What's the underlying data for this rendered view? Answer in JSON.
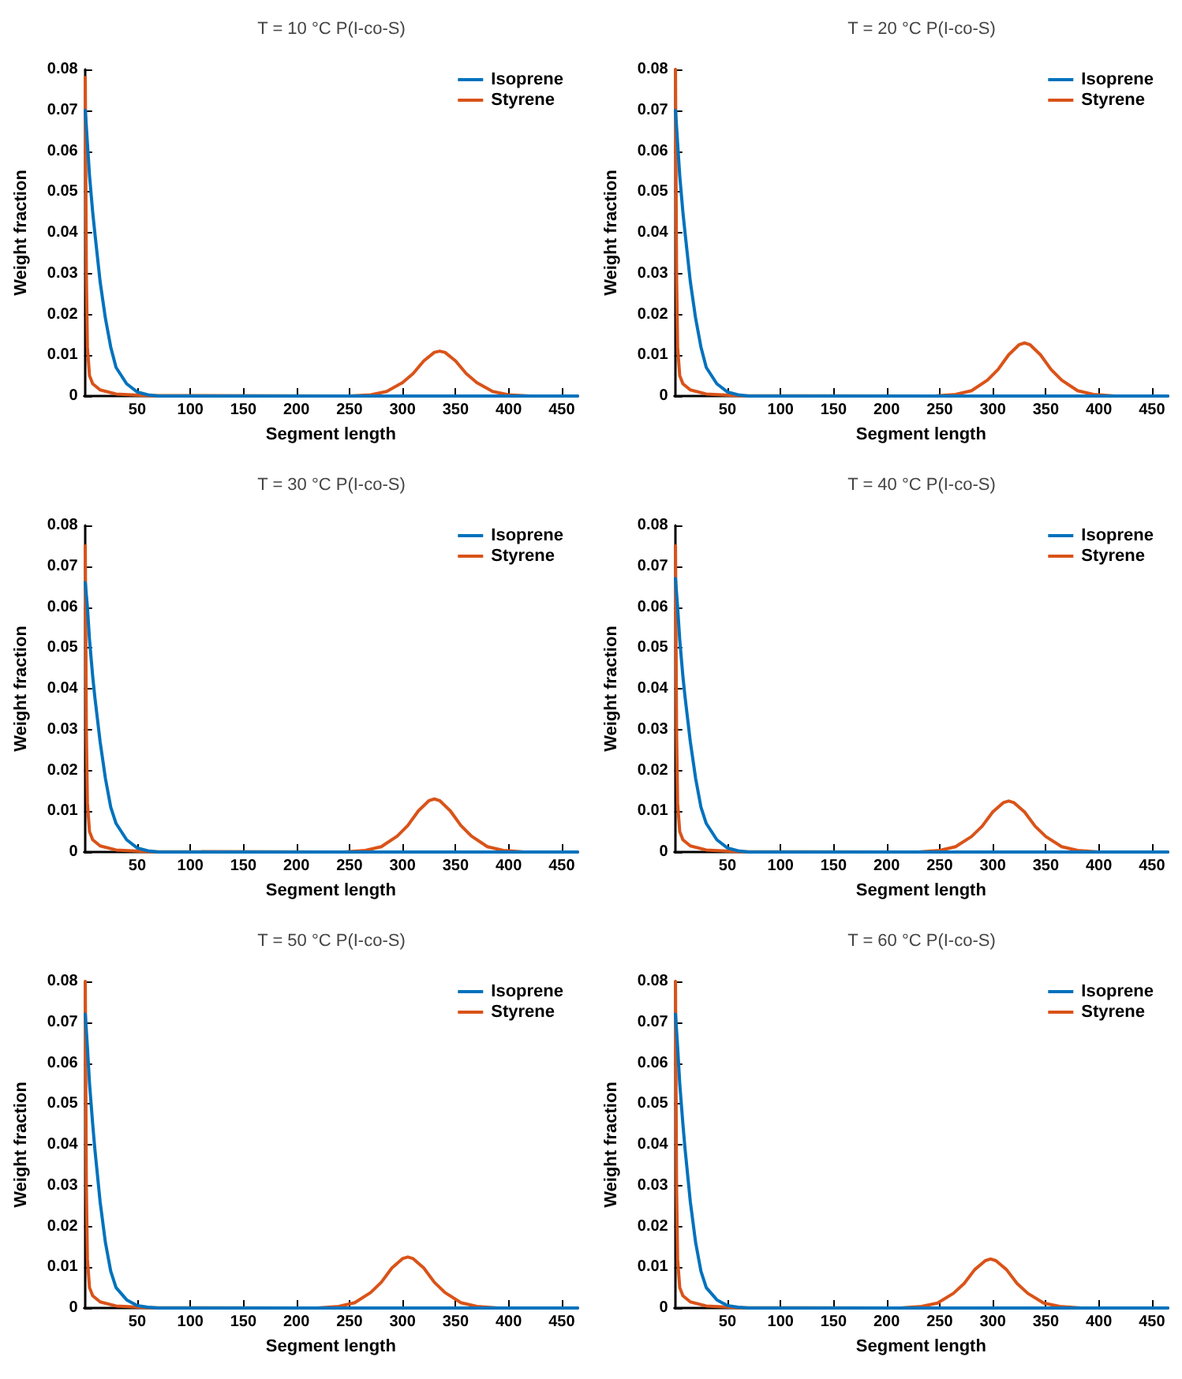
{
  "chart_data": [
    {
      "type": "line",
      "title": "T = 10 °C P(I-co-S)",
      "xlabel": "Segment length",
      "ylabel": "Weight fraction",
      "xlim": [
        0,
        465
      ],
      "xticks": [
        50,
        100,
        150,
        200,
        250,
        300,
        350,
        400,
        450
      ],
      "ylim": [
        0,
        0.08
      ],
      "yticks": [
        0,
        0.01,
        0.02,
        0.03,
        0.04,
        0.05,
        0.06,
        0.07,
        0.08
      ],
      "grid": false,
      "legend": "top right",
      "marker": "none",
      "line_style": "solid",
      "series": [
        {
          "name": "Isoprene",
          "color": "#0072bd",
          "x": [
            1,
            3,
            5,
            8,
            10,
            15,
            20,
            25,
            30,
            40,
            50,
            60,
            70,
            465
          ],
          "values": [
            0.07,
            0.062,
            0.054,
            0.045,
            0.04,
            0.028,
            0.019,
            0.012,
            0.007,
            0.003,
            0.001,
            0.0003,
            0,
            0
          ]
        },
        {
          "name": "Styrene",
          "color": "#d95319",
          "x": [
            1,
            2,
            3,
            5,
            8,
            15,
            30,
            60,
            250,
            270,
            285,
            300,
            310,
            320,
            330,
            335,
            340,
            350,
            360,
            370,
            385,
            400,
            420,
            465
          ],
          "values": [
            0.078,
            0.03,
            0.012,
            0.005,
            0.003,
            0.0015,
            0.0005,
            0.0001,
            0,
            0.0003,
            0.0011,
            0.0033,
            0.0055,
            0.0086,
            0.0107,
            0.011,
            0.0107,
            0.0086,
            0.0055,
            0.0033,
            0.0011,
            0.0003,
            0,
            0
          ]
        }
      ]
    },
    {
      "type": "line",
      "title": "T = 20 °C P(I-co-S)",
      "xlabel": "Segment length",
      "ylabel": "Weight fraction",
      "xlim": [
        0,
        465
      ],
      "xticks": [
        50,
        100,
        150,
        200,
        250,
        300,
        350,
        400,
        450
      ],
      "ylim": [
        0,
        0.08
      ],
      "yticks": [
        0,
        0.01,
        0.02,
        0.03,
        0.04,
        0.05,
        0.06,
        0.07,
        0.08
      ],
      "grid": false,
      "legend": "top right",
      "marker": "none",
      "line_style": "solid",
      "series": [
        {
          "name": "Isoprene",
          "color": "#0072bd",
          "x": [
            1,
            3,
            5,
            8,
            10,
            15,
            20,
            25,
            30,
            40,
            50,
            60,
            70,
            465
          ],
          "values": [
            0.07,
            0.062,
            0.054,
            0.045,
            0.04,
            0.028,
            0.019,
            0.012,
            0.007,
            0.003,
            0.001,
            0.0003,
            0,
            0
          ]
        },
        {
          "name": "Styrene",
          "color": "#d95319",
          "x": [
            1,
            2,
            3,
            5,
            8,
            15,
            30,
            60,
            245,
            265,
            280,
            295,
            305,
            315,
            325,
            330,
            335,
            345,
            355,
            365,
            380,
            395,
            415,
            465
          ],
          "values": [
            0.08,
            0.03,
            0.012,
            0.005,
            0.003,
            0.0015,
            0.0005,
            0.0001,
            0,
            0.0004,
            0.0013,
            0.0039,
            0.0065,
            0.0101,
            0.0126,
            0.013,
            0.0126,
            0.0101,
            0.0065,
            0.0039,
            0.0013,
            0.0004,
            0,
            0
          ]
        }
      ]
    },
    {
      "type": "line",
      "title": "T = 30 °C P(I-co-S)",
      "xlabel": "Segment length",
      "ylabel": "Weight fraction",
      "xlim": [
        0,
        465
      ],
      "xticks": [
        50,
        100,
        150,
        200,
        250,
        300,
        350,
        400,
        450
      ],
      "ylim": [
        0,
        0.08
      ],
      "yticks": [
        0,
        0.01,
        0.02,
        0.03,
        0.04,
        0.05,
        0.06,
        0.07,
        0.08
      ],
      "grid": false,
      "legend": "top right",
      "marker": "none",
      "line_style": "solid",
      "series": [
        {
          "name": "Isoprene",
          "color": "#0072bd",
          "x": [
            1,
            3,
            5,
            8,
            10,
            15,
            20,
            25,
            30,
            40,
            50,
            60,
            70,
            465
          ],
          "values": [
            0.066,
            0.06,
            0.052,
            0.043,
            0.038,
            0.027,
            0.018,
            0.011,
            0.007,
            0.003,
            0.001,
            0.0003,
            0,
            0
          ]
        },
        {
          "name": "Styrene",
          "color": "#d95319",
          "x": [
            1,
            2,
            3,
            5,
            8,
            15,
            30,
            60,
            245,
            265,
            280,
            295,
            305,
            315,
            325,
            330,
            335,
            345,
            355,
            365,
            380,
            395,
            415,
            465
          ],
          "values": [
            0.075,
            0.03,
            0.012,
            0.005,
            0.003,
            0.0015,
            0.0005,
            0.0001,
            0,
            0.0004,
            0.0013,
            0.0039,
            0.0065,
            0.0101,
            0.0126,
            0.013,
            0.0126,
            0.0101,
            0.0065,
            0.0039,
            0.0013,
            0.0004,
            0,
            0
          ]
        }
      ]
    },
    {
      "type": "line",
      "title": "T = 40 °C P(I-co-S)",
      "xlabel": "Segment length",
      "ylabel": "Weight fraction",
      "xlim": [
        0,
        465
      ],
      "xticks": [
        50,
        100,
        150,
        200,
        250,
        300,
        350,
        400,
        450
      ],
      "ylim": [
        0,
        0.08
      ],
      "yticks": [
        0,
        0.01,
        0.02,
        0.03,
        0.04,
        0.05,
        0.06,
        0.07,
        0.08
      ],
      "grid": false,
      "legend": "top right",
      "marker": "none",
      "line_style": "solid",
      "series": [
        {
          "name": "Isoprene",
          "color": "#0072bd",
          "x": [
            1,
            3,
            5,
            8,
            10,
            15,
            20,
            25,
            30,
            40,
            50,
            60,
            70,
            465
          ],
          "values": [
            0.067,
            0.06,
            0.052,
            0.043,
            0.038,
            0.027,
            0.018,
            0.011,
            0.007,
            0.003,
            0.001,
            0.0003,
            0,
            0
          ]
        },
        {
          "name": "Styrene",
          "color": "#d95319",
          "x": [
            1,
            2,
            3,
            5,
            8,
            15,
            30,
            60,
            230,
            250,
            265,
            280,
            290,
            300,
            310,
            315,
            320,
            330,
            340,
            350,
            365,
            380,
            400,
            465
          ],
          "values": [
            0.075,
            0.03,
            0.012,
            0.005,
            0.003,
            0.0015,
            0.0005,
            0.0001,
            0,
            0.0004,
            0.0013,
            0.0038,
            0.0063,
            0.0098,
            0.0121,
            0.0125,
            0.0121,
            0.0098,
            0.0063,
            0.0038,
            0.0013,
            0.0004,
            0,
            0
          ]
        }
      ]
    },
    {
      "type": "line",
      "title": "T = 50 °C P(I-co-S)",
      "xlabel": "Segment length",
      "ylabel": "Weight fraction",
      "xlim": [
        0,
        465
      ],
      "xticks": [
        50,
        100,
        150,
        200,
        250,
        300,
        350,
        400,
        450
      ],
      "ylim": [
        0,
        0.08
      ],
      "yticks": [
        0,
        0.01,
        0.02,
        0.03,
        0.04,
        0.05,
        0.06,
        0.07,
        0.08
      ],
      "grid": false,
      "legend": "top right",
      "marker": "none",
      "line_style": "solid",
      "series": [
        {
          "name": "Isoprene",
          "color": "#0072bd",
          "x": [
            1,
            3,
            5,
            8,
            10,
            15,
            20,
            25,
            30,
            40,
            50,
            60,
            70,
            465
          ],
          "values": [
            0.072,
            0.064,
            0.055,
            0.045,
            0.039,
            0.026,
            0.016,
            0.009,
            0.005,
            0.002,
            0.0006,
            0.0002,
            0,
            0
          ]
        },
        {
          "name": "Styrene",
          "color": "#d95319",
          "x": [
            1,
            2,
            3,
            5,
            8,
            15,
            30,
            60,
            220,
            240,
            255,
            270,
            280,
            290,
            300,
            305,
            310,
            320,
            330,
            340,
            355,
            370,
            390,
            465
          ],
          "values": [
            0.08,
            0.03,
            0.012,
            0.005,
            0.003,
            0.0015,
            0.0005,
            0.0001,
            0,
            0.0004,
            0.0013,
            0.0038,
            0.0063,
            0.0098,
            0.0121,
            0.0125,
            0.0121,
            0.0098,
            0.0063,
            0.0038,
            0.0013,
            0.0004,
            0,
            0
          ]
        }
      ]
    },
    {
      "type": "line",
      "title": "T = 60 °C P(I-co-S)",
      "xlabel": "Segment length",
      "ylabel": "Weight fraction",
      "xlim": [
        0,
        465
      ],
      "xticks": [
        50,
        100,
        150,
        200,
        250,
        300,
        350,
        400,
        450
      ],
      "ylim": [
        0,
        0.08
      ],
      "yticks": [
        0,
        0.01,
        0.02,
        0.03,
        0.04,
        0.05,
        0.06,
        0.07,
        0.08
      ],
      "grid": false,
      "legend": "top right",
      "marker": "none",
      "line_style": "solid",
      "series": [
        {
          "name": "Isoprene",
          "color": "#0072bd",
          "x": [
            1,
            3,
            5,
            8,
            10,
            15,
            20,
            25,
            30,
            40,
            50,
            60,
            70,
            465
          ],
          "values": [
            0.072,
            0.064,
            0.055,
            0.045,
            0.039,
            0.026,
            0.016,
            0.009,
            0.005,
            0.002,
            0.0006,
            0.0002,
            0,
            0
          ]
        },
        {
          "name": "Styrene",
          "color": "#d95319",
          "x": [
            1,
            2,
            3,
            5,
            8,
            15,
            30,
            60,
            213,
            233,
            248,
            263,
            273,
            283,
            293,
            298,
            303,
            313,
            323,
            333,
            348,
            363,
            383,
            465
          ],
          "values": [
            0.08,
            0.03,
            0.012,
            0.005,
            0.003,
            0.0015,
            0.0005,
            0.0001,
            0,
            0.0004,
            0.0012,
            0.0036,
            0.006,
            0.0094,
            0.0116,
            0.012,
            0.0116,
            0.0094,
            0.006,
            0.0036,
            0.0012,
            0.0004,
            0,
            0
          ]
        }
      ]
    }
  ]
}
